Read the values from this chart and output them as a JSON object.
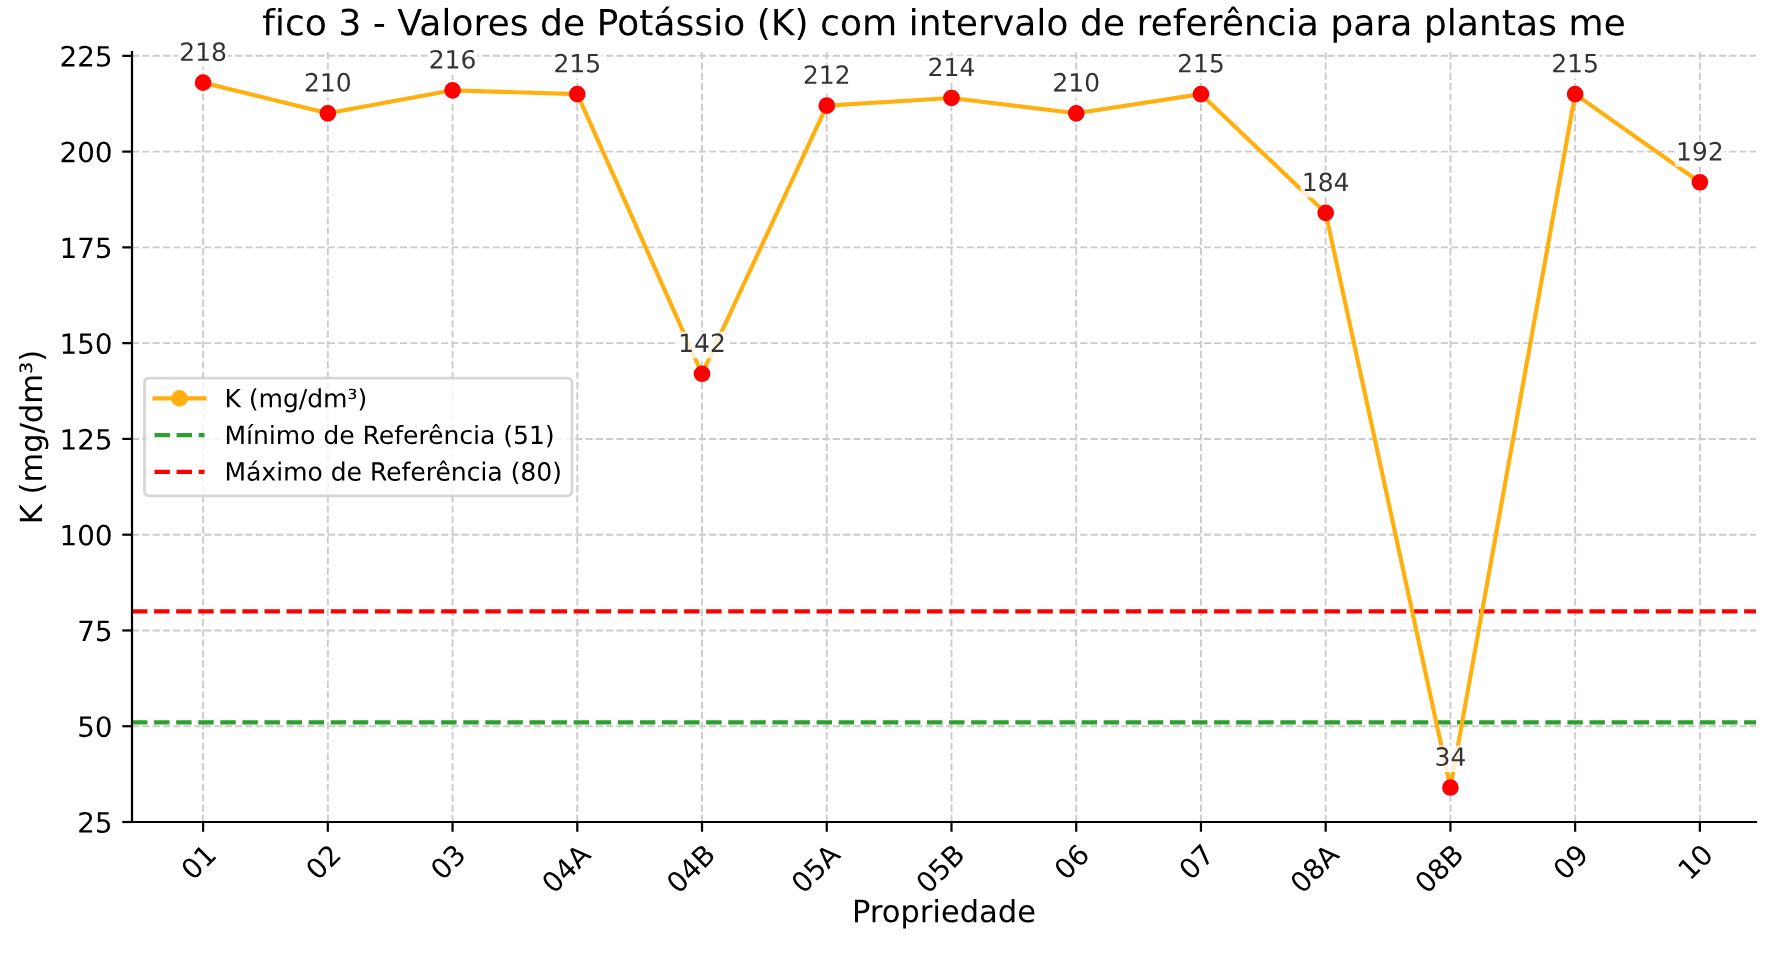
{
  "chart_data": {
    "type": "line",
    "title": "fico 3 - Valores de Potássio (K) com intervalo de referência para plantas me",
    "xlabel": "Propriedade",
    "ylabel": "K (mg/dm³)",
    "categories": [
      "01",
      "02",
      "03",
      "04A",
      "04B",
      "05A",
      "05B",
      "06",
      "07",
      "08A",
      "08B",
      "09",
      "10"
    ],
    "series": [
      {
        "name": "K (mg/dm³)",
        "color": "#ffb00f",
        "colors": [
          "#ff0000",
          "#ff0000",
          "#ff0000",
          "#ff0000",
          "#ff0000",
          "#ff0000",
          "#ff0000",
          "#ff0000",
          "#ff0000",
          "#ff0000",
          "#ff0000",
          "#ff0000",
          "#ff0000"
        ],
        "values": [
          218,
          210,
          216,
          215,
          142,
          212,
          214,
          210,
          215,
          184,
          34,
          215,
          192
        ]
      }
    ],
    "ref_lines": [
      {
        "axis": "y",
        "value": 51,
        "label": "Mínimo de Referência (51)",
        "color": "#2ca02c",
        "line_style": "dashed"
      },
      {
        "axis": "y",
        "value": 80,
        "label": "Máximo de Referência (80)",
        "color": "#ff0000",
        "line_style": "dashed"
      }
    ],
    "ylim": [
      25,
      226
    ],
    "yticks": [
      25,
      50,
      75,
      100,
      125,
      150,
      175,
      200,
      225
    ],
    "data_labels": true,
    "grid": true,
    "legend": "center left",
    "marker": "circle",
    "line_style": "solid"
  }
}
